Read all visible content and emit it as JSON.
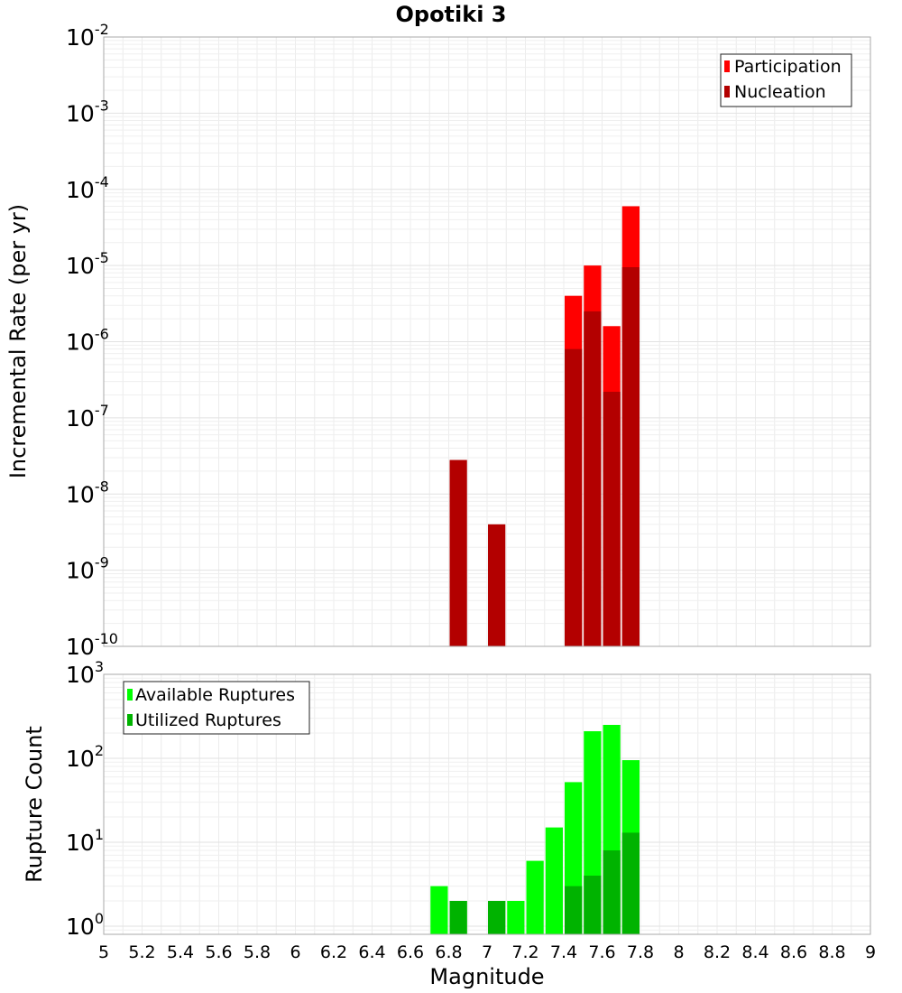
{
  "chart_data": [
    {
      "type": "bar",
      "title": "Opotiki 3",
      "xlabel": "",
      "ylabel": "Incremental Rate (per yr)",
      "xlim": [
        5,
        9
      ],
      "ylim": [
        1e-10,
        0.01
      ],
      "yscale": "log",
      "grid": true,
      "legend_position": "top-right",
      "bin_width": 0.1,
      "series": [
        {
          "name": "Participation",
          "color": "#ff0000",
          "x": [
            7.45,
            7.55,
            7.65,
            7.75
          ],
          "values": [
            4e-06,
            1e-05,
            1.6e-06,
            6e-05
          ]
        },
        {
          "name": "Nucleation",
          "color": "#b30000",
          "x": [
            6.85,
            7.05,
            7.45,
            7.55,
            7.65,
            7.75
          ],
          "values": [
            2.8e-08,
            4e-09,
            8e-07,
            2.5e-06,
            2.2e-07,
            9.5e-06
          ]
        }
      ]
    },
    {
      "type": "bar",
      "title": "",
      "xlabel": "Magnitude",
      "ylabel": "Rupture Count",
      "xlim": [
        5,
        9
      ],
      "ylim": [
        0.8,
        1000
      ],
      "yscale": "log",
      "grid": true,
      "legend_position": "top-left",
      "bin_width": 0.1,
      "series": [
        {
          "name": "Available Ruptures",
          "color": "#00ff00",
          "x": [
            6.75,
            6.85,
            7.05,
            7.15,
            7.25,
            7.35,
            7.45,
            7.55,
            7.65,
            7.75
          ],
          "values": [
            3,
            2,
            2,
            2,
            6,
            15,
            52,
            210,
            250,
            95
          ]
        },
        {
          "name": "Utilized Ruptures",
          "color": "#00b300",
          "x": [
            6.85,
            7.05,
            7.45,
            7.55,
            7.65,
            7.75
          ],
          "values": [
            2,
            2,
            3,
            4,
            8,
            13
          ]
        }
      ]
    }
  ],
  "x_ticks": [
    "5",
    "5.2",
    "5.4",
    "5.6",
    "5.8",
    "6",
    "6.2",
    "6.4",
    "6.6",
    "6.8",
    "7",
    "7.2",
    "7.4",
    "7.6",
    "7.8",
    "8",
    "8.2",
    "8.4",
    "8.6",
    "8.8",
    "9"
  ],
  "top_y_ticks": [
    {
      "base": "10",
      "exp": "-10"
    },
    {
      "base": "10",
      "exp": "-9"
    },
    {
      "base": "10",
      "exp": "-8"
    },
    {
      "base": "10",
      "exp": "-7"
    },
    {
      "base": "10",
      "exp": "-6"
    },
    {
      "base": "10",
      "exp": "-5"
    },
    {
      "base": "10",
      "exp": "-4"
    },
    {
      "base": "10",
      "exp": "-3"
    },
    {
      "base": "10",
      "exp": "-2"
    }
  ],
  "bottom_y_ticks": [
    {
      "base": "10",
      "exp": "0"
    },
    {
      "base": "10",
      "exp": "1"
    },
    {
      "base": "10",
      "exp": "2"
    },
    {
      "base": "10",
      "exp": "3"
    }
  ]
}
